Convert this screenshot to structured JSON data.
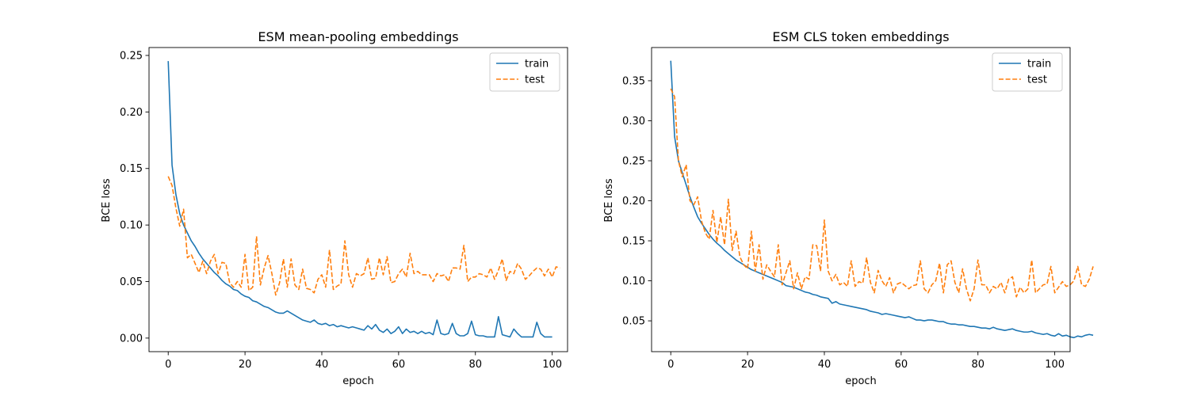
{
  "chart_data": [
    {
      "type": "line",
      "title": "ESM mean-pooling embeddings",
      "xlabel": "epoch",
      "ylabel": "BCE loss",
      "xlim": [
        -5,
        104
      ],
      "ylim": [
        -0.012,
        0.257
      ],
      "xticks": [
        0,
        20,
        40,
        60,
        80,
        100
      ],
      "yticks": [
        0.0,
        0.05,
        0.1,
        0.15,
        0.2,
        0.25
      ],
      "ytick_labels": [
        "0.00",
        "0.05",
        "0.10",
        "0.15",
        "0.20",
        "0.25"
      ],
      "grid": false,
      "legend": "top-right",
      "colors": {
        "train": "#1f77b4",
        "test": "#ff7f0e"
      },
      "series": [
        {
          "name": "train",
          "style": "solid",
          "values": [
            0.245,
            0.153,
            0.127,
            0.11,
            0.1,
            0.093,
            0.086,
            0.081,
            0.075,
            0.07,
            0.066,
            0.062,
            0.058,
            0.055,
            0.051,
            0.048,
            0.046,
            0.043,
            0.042,
            0.039,
            0.037,
            0.036,
            0.033,
            0.032,
            0.03,
            0.028,
            0.027,
            0.025,
            0.023,
            0.022,
            0.022,
            0.024,
            0.022,
            0.02,
            0.018,
            0.016,
            0.015,
            0.014,
            0.016,
            0.013,
            0.012,
            0.013,
            0.011,
            0.012,
            0.01,
            0.011,
            0.01,
            0.009,
            0.01,
            0.009,
            0.008,
            0.007,
            0.011,
            0.008,
            0.012,
            0.007,
            0.005,
            0.008,
            0.004,
            0.006,
            0.01,
            0.004,
            0.008,
            0.005,
            0.006,
            0.004,
            0.006,
            0.004,
            0.005,
            0.003,
            0.016,
            0.004,
            0.003,
            0.004,
            0.013,
            0.004,
            0.002,
            0.002,
            0.004,
            0.015,
            0.003,
            0.002,
            0.002,
            0.001,
            0.001,
            0.001,
            0.019,
            0.003,
            0.002,
            0.001,
            0.008,
            0.004,
            0.001,
            0.001,
            0.001,
            0.001,
            0.014,
            0.004,
            0.001,
            0.001,
            0.001
          ]
        },
        {
          "name": "test",
          "style": "dashed",
          "values": [
            0.143,
            0.135,
            0.115,
            0.099,
            0.114,
            0.071,
            0.074,
            0.066,
            0.058,
            0.068,
            0.057,
            0.068,
            0.074,
            0.057,
            0.067,
            0.066,
            0.049,
            0.045,
            0.05,
            0.045,
            0.074,
            0.042,
            0.045,
            0.09,
            0.047,
            0.062,
            0.073,
            0.057,
            0.038,
            0.049,
            0.07,
            0.045,
            0.07,
            0.047,
            0.043,
            0.061,
            0.044,
            0.043,
            0.04,
            0.052,
            0.056,
            0.045,
            0.078,
            0.043,
            0.046,
            0.048,
            0.086,
            0.056,
            0.045,
            0.057,
            0.055,
            0.057,
            0.071,
            0.052,
            0.053,
            0.071,
            0.056,
            0.072,
            0.049,
            0.05,
            0.057,
            0.061,
            0.054,
            0.075,
            0.057,
            0.059,
            0.056,
            0.056,
            0.056,
            0.05,
            0.057,
            0.055,
            0.056,
            0.05,
            0.062,
            0.062,
            0.061,
            0.082,
            0.05,
            0.054,
            0.054,
            0.057,
            0.056,
            0.054,
            0.062,
            0.052,
            0.06,
            0.07,
            0.051,
            0.059,
            0.057,
            0.066,
            0.061,
            0.052,
            0.055,
            0.059,
            0.062,
            0.061,
            0.055,
            0.061,
            0.054,
            0.063,
            0.062
          ]
        }
      ]
    },
    {
      "type": "line",
      "title": "ESM CLS token embeddings",
      "xlabel": "epoch",
      "ylabel": "BCE loss",
      "xlim": [
        -5,
        104
      ],
      "ylim": [
        0.0115,
        0.3915
      ],
      "xticks": [
        0,
        20,
        40,
        60,
        80,
        100
      ],
      "yticks": [
        0.05,
        0.1,
        0.15,
        0.2,
        0.25,
        0.3,
        0.35
      ],
      "ytick_labels": [
        "0.05",
        "0.10",
        "0.15",
        "0.20",
        "0.25",
        "0.30",
        "0.35"
      ],
      "grid": false,
      "legend": "top-right",
      "colors": {
        "train": "#1f77b4",
        "test": "#ff7f0e"
      },
      "series": [
        {
          "name": "train",
          "style": "solid",
          "values": [
            0.375,
            0.28,
            0.25,
            0.235,
            0.22,
            0.205,
            0.192,
            0.18,
            0.172,
            0.165,
            0.158,
            0.152,
            0.147,
            0.143,
            0.138,
            0.134,
            0.13,
            0.126,
            0.123,
            0.12,
            0.117,
            0.114,
            0.112,
            0.11,
            0.108,
            0.106,
            0.104,
            0.102,
            0.1,
            0.098,
            0.094,
            0.093,
            0.092,
            0.09,
            0.088,
            0.086,
            0.085,
            0.083,
            0.082,
            0.08,
            0.079,
            0.078,
            0.072,
            0.074,
            0.071,
            0.07,
            0.069,
            0.068,
            0.067,
            0.066,
            0.065,
            0.064,
            0.062,
            0.061,
            0.06,
            0.058,
            0.059,
            0.058,
            0.057,
            0.056,
            0.055,
            0.054,
            0.055,
            0.053,
            0.051,
            0.051,
            0.05,
            0.051,
            0.051,
            0.05,
            0.049,
            0.049,
            0.047,
            0.046,
            0.046,
            0.045,
            0.045,
            0.044,
            0.043,
            0.043,
            0.042,
            0.041,
            0.041,
            0.04,
            0.042,
            0.04,
            0.039,
            0.038,
            0.039,
            0.04,
            0.038,
            0.037,
            0.036,
            0.036,
            0.037,
            0.035,
            0.034,
            0.033,
            0.034,
            0.032,
            0.031,
            0.034,
            0.031,
            0.032,
            0.03,
            0.029,
            0.031,
            0.03,
            0.032,
            0.033,
            0.032
          ]
        },
        {
          "name": "test",
          "style": "dashed",
          "values": [
            0.34,
            0.33,
            0.25,
            0.23,
            0.245,
            0.2,
            0.195,
            0.205,
            0.175,
            0.16,
            0.152,
            0.188,
            0.148,
            0.18,
            0.145,
            0.202,
            0.138,
            0.162,
            0.13,
            0.12,
            0.115,
            0.162,
            0.112,
            0.145,
            0.102,
            0.12,
            0.112,
            0.105,
            0.145,
            0.095,
            0.11,
            0.125,
            0.09,
            0.11,
            0.09,
            0.105,
            0.102,
            0.145,
            0.144,
            0.112,
            0.176,
            0.112,
            0.1,
            0.108,
            0.095,
            0.098,
            0.093,
            0.125,
            0.093,
            0.099,
            0.097,
            0.129,
            0.098,
            0.085,
            0.113,
            0.1,
            0.093,
            0.104,
            0.085,
            0.096,
            0.098,
            0.094,
            0.09,
            0.094,
            0.095,
            0.125,
            0.09,
            0.085,
            0.095,
            0.1,
            0.122,
            0.085,
            0.12,
            0.125,
            0.098,
            0.085,
            0.115,
            0.09,
            0.075,
            0.09,
            0.126,
            0.095,
            0.095,
            0.085,
            0.093,
            0.09,
            0.098,
            0.085,
            0.102,
            0.105,
            0.08,
            0.092,
            0.085,
            0.09,
            0.126,
            0.085,
            0.09,
            0.095,
            0.096,
            0.118,
            0.085,
            0.092,
            0.099,
            0.093,
            0.095,
            0.1,
            0.118,
            0.095,
            0.093,
            0.102,
            0.118
          ]
        }
      ]
    }
  ]
}
